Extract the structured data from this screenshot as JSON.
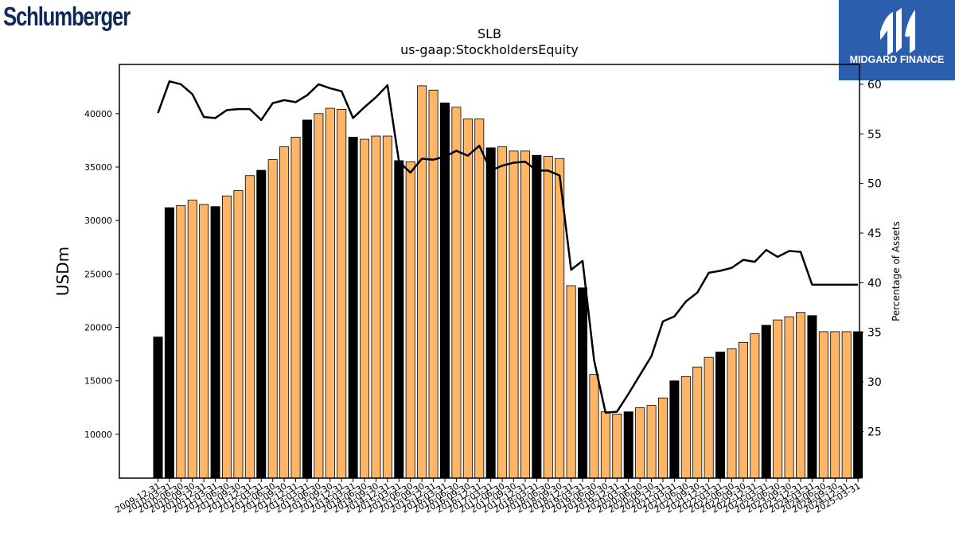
{
  "brand": {
    "name": "Schlumberger"
  },
  "partner": {
    "name": "MIDGARD FINANCE",
    "accent": "#2b5fae"
  },
  "chart_data": {
    "type": "bar",
    "title": "SLB",
    "subtitle": "us-gaap:StockholdersEquity",
    "ylabel": "USDm",
    "y2label": "Percentage of Assets",
    "ylim": [
      5900,
      44600
    ],
    "y2lim": [
      20.3,
      62.0
    ],
    "yticks": [
      10000,
      15000,
      20000,
      25000,
      30000,
      35000,
      40000
    ],
    "y2ticks": [
      25,
      30,
      35,
      40,
      45,
      50,
      55,
      60
    ],
    "grid": false,
    "colors": {
      "annual": "#000000",
      "quarterly": "#ffb566",
      "line": "#000000"
    },
    "categories": [
      "2009-12-31",
      "2010-03-31",
      "2010-06-30",
      "2010-09-30",
      "2010-12-31",
      "2011-03-31",
      "2011-06-30",
      "2011-09-30",
      "2011-12-31",
      "2012-03-31",
      "2012-06-30",
      "2012-09-30",
      "2012-12-31",
      "2013-03-31",
      "2013-06-30",
      "2013-09-30",
      "2013-12-31",
      "2014-03-31",
      "2014-06-30",
      "2014-09-30",
      "2014-12-31",
      "2015-03-31",
      "2015-06-30",
      "2015-09-30",
      "2015-12-31",
      "2016-03-31",
      "2016-06-30",
      "2016-09-30",
      "2016-12-31",
      "2017-03-31",
      "2017-06-30",
      "2017-09-30",
      "2017-12-31",
      "2018-03-31",
      "2018-06-30",
      "2018-09-30",
      "2018-12-31",
      "2019-03-31",
      "2019-06-30",
      "2019-09-30",
      "2019-12-31",
      "2020-03-31",
      "2020-06-30",
      "2020-09-30",
      "2020-12-31",
      "2021-03-31",
      "2021-06-30",
      "2021-09-30",
      "2021-12-31",
      "2022-03-31",
      "2022-06-30",
      "2022-09-30",
      "2022-12-31",
      "2023-03-31",
      "2023-06-30",
      "2023-09-30",
      "2023-12-31",
      "2024-03-31",
      "2024-06-30",
      "2024-09-30",
      "2024-12-31",
      "2025-03-31"
    ],
    "tick_labels": [
      "2009-12-31",
      "2010-03-31",
      "2010-06-30",
      "2010-09-30",
      "2010-12-31",
      "2011-03-31",
      "2011-06-30",
      "2011-09-30",
      "2011-12-31",
      "2012-03-31",
      "2012-06-30",
      "2012-09-30",
      "2012-12-31",
      "2013-03-31",
      "2013-06-30",
      "2013-09-30",
      "2013-12-31",
      "2014-03-31",
      "2014-06-30",
      "2014-09-30",
      "2014-12-31",
      "2015-03-31",
      "2015-06-30",
      "2015-09-30",
      "2015-12-31",
      "2016-03-31",
      "2016-06-30",
      "2016-09-30",
      "2016-12-31",
      "2017-03-31",
      "2017-06-30",
      "2017-09-30",
      "2017-12-31",
      "2018-03-31",
      "2018-06-30",
      "2018-09-30",
      "2018-12-31",
      "2019-03-31",
      "2019-06-30",
      "2019-09-30",
      "2019-12-31",
      "2020-03-31",
      "2020-06-30",
      "2020-09-30",
      "2020-12-31",
      "2021-03-31",
      "2021-06-30",
      "2021-09-30",
      "2021-12-31",
      "2022-03-31",
      "2022-06-30",
      "2022-09-30",
      "2022-12-31",
      "2023-03-31",
      "2023-06-30",
      "2023-09-30",
      "2023-12-31",
      "2024-03-31",
      "2024-06-30",
      "2024-09-30",
      "2024-12-31",
      "2025-03-31"
    ],
    "series": [
      {
        "kind": "bar",
        "values": [
          19100,
          31200,
          31400,
          31900,
          31500,
          31300,
          32300,
          32800,
          34200,
          34700,
          35700,
          36900,
          37800,
          39400,
          40000,
          40500,
          40400,
          37800,
          37600,
          37900,
          37900,
          35600,
          35500,
          42600,
          42200,
          41000,
          40600,
          39500,
          39500,
          36800,
          36900,
          36500,
          36500,
          36100,
          36000,
          35800,
          23900,
          23700,
          15600,
          12100,
          11900,
          12100,
          12500,
          12700,
          13400,
          15000,
          15400,
          16300,
          17200,
          17700,
          18000,
          18600,
          19400,
          20200,
          20700,
          21000,
          21400,
          21100,
          19600,
          19600,
          19600,
          19600
        ],
        "annual": [
          true,
          true,
          false,
          false,
          false,
          true,
          false,
          false,
          false,
          true,
          false,
          false,
          false,
          true,
          false,
          false,
          false,
          true,
          false,
          false,
          false,
          true,
          false,
          false,
          false,
          true,
          false,
          false,
          false,
          true,
          false,
          false,
          false,
          true,
          false,
          false,
          false,
          true,
          false,
          false,
          false,
          true,
          false,
          false,
          false,
          true,
          false,
          false,
          false,
          true,
          false,
          false,
          false,
          true,
          false,
          false,
          false,
          true,
          false,
          false,
          false,
          true
        ]
      },
      {
        "kind": "line",
        "axis": "right",
        "values": [
          57.1,
          60.3,
          60.0,
          59.0,
          56.7,
          56.6,
          57.4,
          57.5,
          57.5,
          56.4,
          58.1,
          58.4,
          58.2,
          58.9,
          60.0,
          59.6,
          59.3,
          56.6,
          57.7,
          58.7,
          59.9,
          52.2,
          51.1,
          52.5,
          52.4,
          52.7,
          53.3,
          52.8,
          53.8,
          51.3,
          51.8,
          52.1,
          52.2,
          51.3,
          51.3,
          50.8,
          41.3,
          42.2,
          32.2,
          26.9,
          27.0,
          28.8,
          30.7,
          32.6,
          36.1,
          36.6,
          38.1,
          39.0,
          41.0,
          41.2,
          41.5,
          42.3,
          42.1,
          43.3,
          42.6,
          43.2,
          43.1,
          39.8,
          39.8,
          39.8,
          39.8,
          39.8
        ]
      }
    ]
  }
}
